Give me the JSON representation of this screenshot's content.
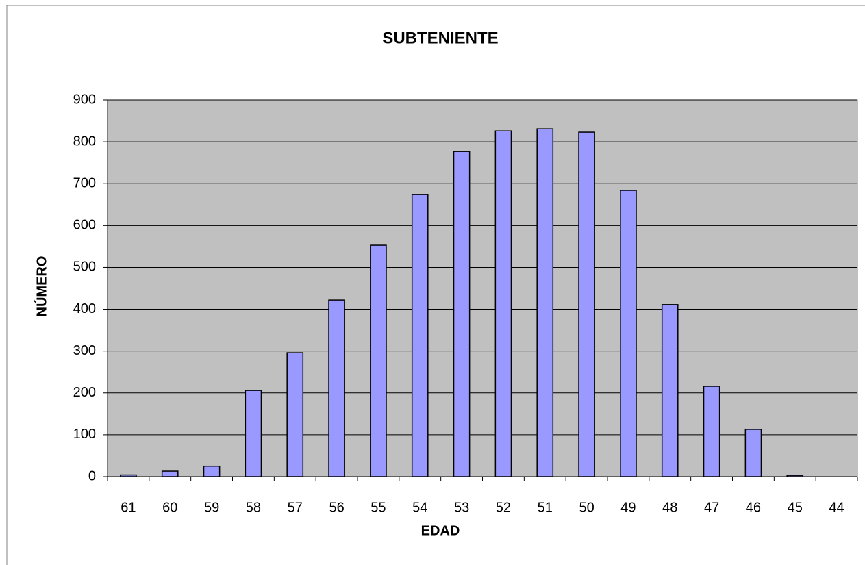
{
  "chart_data": {
    "type": "bar",
    "title": "SUBTENIENTE",
    "x_label": "EDAD",
    "y_label": "NÚMERO",
    "categories": [
      "61",
      "60",
      "59",
      "58",
      "57",
      "56",
      "55",
      "54",
      "53",
      "52",
      "51",
      "50",
      "49",
      "48",
      "47",
      "46",
      "45",
      "44"
    ],
    "values": [
      4,
      13,
      25,
      206,
      296,
      422,
      553,
      674,
      777,
      826,
      831,
      823,
      684,
      411,
      216,
      113,
      3,
      0
    ],
    "color": "#9999ff",
    "ylim": [
      0,
      900
    ],
    "yticks": [
      0,
      100,
      200,
      300,
      400,
      500,
      600,
      700,
      800,
      900
    ],
    "grid": true
  }
}
